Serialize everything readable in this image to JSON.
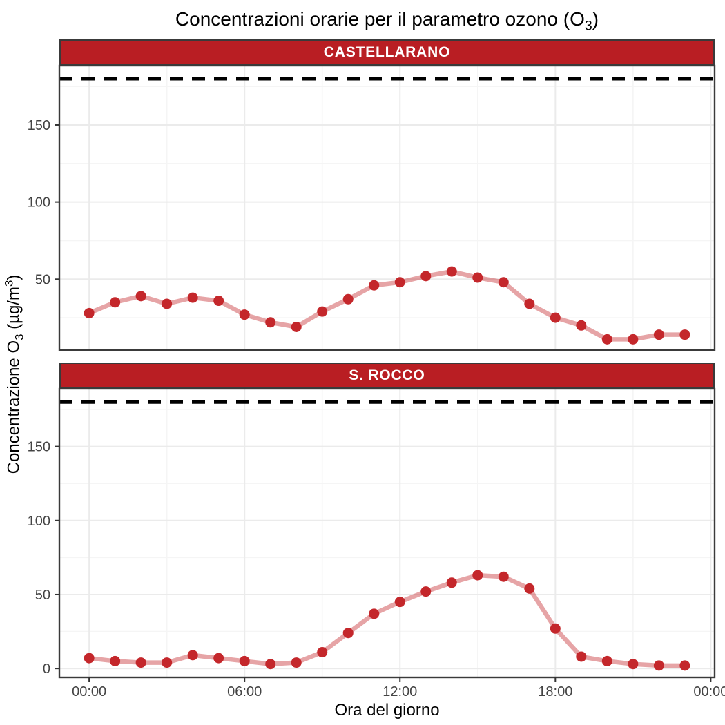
{
  "title": {
    "before_sub": "Concentrazioni orarie per il parametro ozono (O",
    "sub": "3",
    "after_sub": ")"
  },
  "axes": {
    "x_label": "Ora del giorno",
    "y_label": {
      "before_sub": "Concentrazione O",
      "sub": "3",
      "mid": " (µg/m",
      "sup": "3",
      "after": ")"
    }
  },
  "chart_data": {
    "type": "line",
    "title": "Concentrazioni orarie per il parametro ozono (O3)",
    "xlabel": "Ora del giorno",
    "ylabel": "Concentrazione O3 (µg/m³)",
    "legend": false,
    "grid": true,
    "x_hours": [
      0,
      1,
      2,
      3,
      4,
      5,
      6,
      7,
      8,
      9,
      10,
      11,
      12,
      13,
      14,
      15,
      16,
      17,
      18,
      19,
      20,
      21,
      22,
      23
    ],
    "x_tick_hours": [
      0,
      6,
      12,
      18,
      24
    ],
    "x_tick_labels": [
      "00:00",
      "06:00",
      "12:00",
      "18:00",
      "00:00"
    ],
    "x_minor_hours": [
      3,
      9,
      15,
      21
    ],
    "xlim": [
      -1.15,
      24.15
    ],
    "threshold": 180,
    "facets": [
      {
        "label": "CASTELLARANO",
        "values": [
          28,
          35,
          39,
          34,
          38,
          36,
          27,
          22,
          19,
          29,
          37,
          46,
          48,
          52,
          55,
          51,
          48,
          34,
          25,
          20,
          11,
          11,
          14,
          14
        ],
        "y_ticks": [
          50,
          100,
          150
        ],
        "y_minor": [
          25,
          75,
          125,
          175
        ],
        "ylim": [
          4,
          188.5
        ]
      },
      {
        "label": "S. ROCCO",
        "values": [
          7,
          5,
          4,
          4,
          9,
          7,
          5,
          3,
          4,
          11,
          24,
          37,
          45,
          52,
          58,
          63,
          62,
          54,
          27,
          8,
          5,
          3,
          2,
          2
        ],
        "y_ticks": [
          0,
          50,
          100,
          150
        ],
        "y_minor": [
          25,
          75,
          125,
          175
        ],
        "ylim": [
          -6,
          189
        ]
      }
    ],
    "colors": {
      "strip_fill": "#B91E23",
      "strip_text": "#FFFFFF",
      "point": "#C4272B",
      "line": "#C4272B",
      "line_opacity": 0.42,
      "threshold": "#000000",
      "grid_major": "#EBEBEB",
      "grid_minor": "#F5F5F5",
      "panel_border": "#3A3A3A",
      "tick_mark": "#333333",
      "tick_label": "#444444"
    }
  }
}
